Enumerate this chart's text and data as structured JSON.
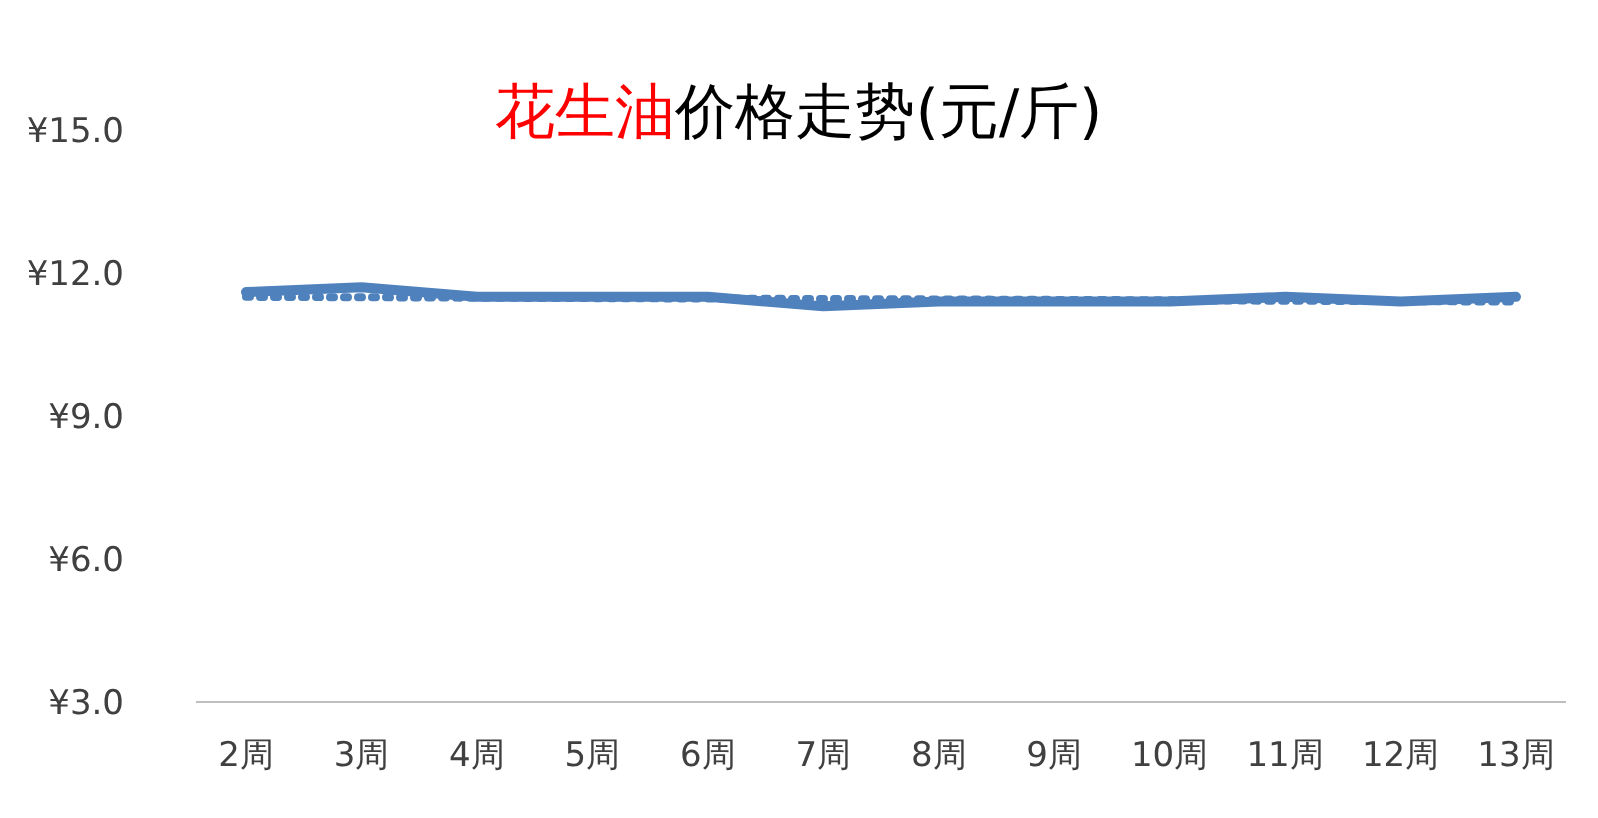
{
  "chart_data": {
    "type": "line",
    "title": "花生油价格走势(元/斤)",
    "categories": [
      "2周",
      "3周",
      "4周",
      "5周",
      "6周",
      "7周",
      "8周",
      "9周",
      "10周",
      "11周",
      "12周",
      "13周"
    ],
    "series": [
      {
        "color": "#4f81bd",
        "values": [
          11.6,
          11.7,
          11.5,
          11.5,
          11.5,
          11.3,
          11.4,
          11.4,
          11.4,
          11.5,
          11.4,
          11.5
        ],
        "line_style": "solid"
      },
      {
        "type": "line",
        "color": "#4f81bd",
        "x": [
          "2周",
          "13周"
        ],
        "values": [
          11.5,
          11.4
        ],
        "line_style": "dotted"
      }
    ],
    "ylim": [
      3,
      15
    ],
    "yticks": [
      {
        "value": 3,
        "label": "¥3.0"
      },
      {
        "value": 6,
        "label": "¥6.0"
      },
      {
        "value": 9,
        "label": "¥9.0"
      },
      {
        "value": 12,
        "label": "¥12.0"
      },
      {
        "value": 15,
        "label": "¥15.0"
      }
    ],
    "grid": false,
    "legend": false,
    "marker": "none"
  }
}
